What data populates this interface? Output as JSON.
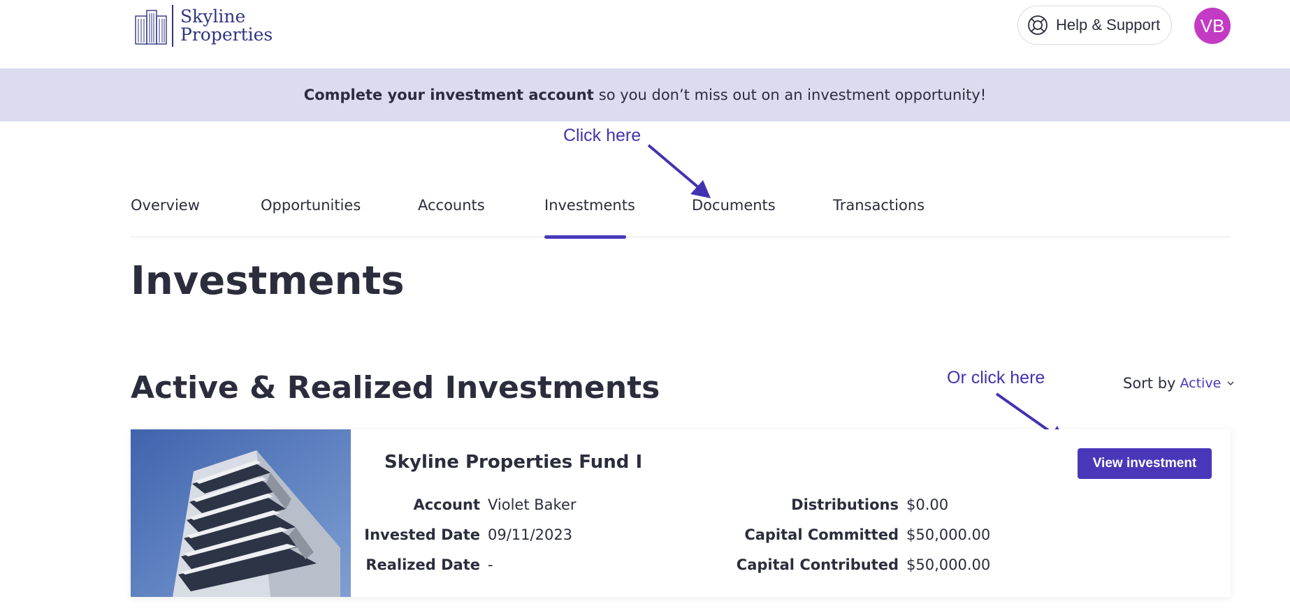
{
  "header": {
    "logo_line1": "Skyline",
    "logo_line2": "Properties",
    "help_label": "Help & Support",
    "avatar_initials": "VB"
  },
  "banner": {
    "bold_text": "Complete your investment account",
    "rest_text": "so you don’t miss out on an investment opportunity!"
  },
  "annotations": {
    "click_here": "Click here",
    "or_click_here": "Or click here",
    "color": "#4133b0"
  },
  "tabs": [
    {
      "label": "Overview"
    },
    {
      "label": "Opportunities"
    },
    {
      "label": "Accounts"
    },
    {
      "label": "Investments",
      "active": true
    },
    {
      "label": "Documents"
    },
    {
      "label": "Transactions"
    }
  ],
  "page_title": "Investments",
  "section_title": "Active & Realized Investments",
  "sort": {
    "label": "Sort by",
    "value": "Active"
  },
  "investment": {
    "name": "Skyline Properties Fund I",
    "view_button": "View investment",
    "account_label": "Account",
    "account_value": "Violet Baker",
    "invested_label": "Invested Date",
    "invested_value": "09/11/2023",
    "realized_label": "Realized Date",
    "realized_value": "-",
    "distributions_label": "Distributions",
    "distributions_value": "$0.00",
    "committed_label": "Capital Committed",
    "committed_value": "$50,000.00",
    "contributed_label": "Capital Contributed",
    "contributed_value": "$50,000.00"
  },
  "colors": {
    "accent": "#4838b9",
    "avatar": "#c33bc4",
    "banner_bg": "#dcdcef",
    "brand": "#2f3480"
  },
  "icons": {
    "logo": "building-icon",
    "help": "lifebuoy-icon",
    "sort": "chevron-down-icon"
  }
}
